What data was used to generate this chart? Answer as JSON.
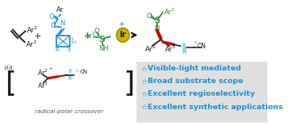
{
  "white": "#ffffff",
  "blue": "#2090d0",
  "dark_green": "#2d8a2d",
  "red": "#cc0000",
  "black": "#1a1a1a",
  "gray": "#888888",
  "dark_gray": "#555555",
  "light_gray": "#e0e0e0",
  "gold_fill": "#c8b400",
  "gold_edge": "#a09000",
  "bullet_items": [
    "Visible-light mediated",
    "Broad substrate scope",
    "Excellent regioselectivity",
    "Excellent synthetic applications"
  ]
}
